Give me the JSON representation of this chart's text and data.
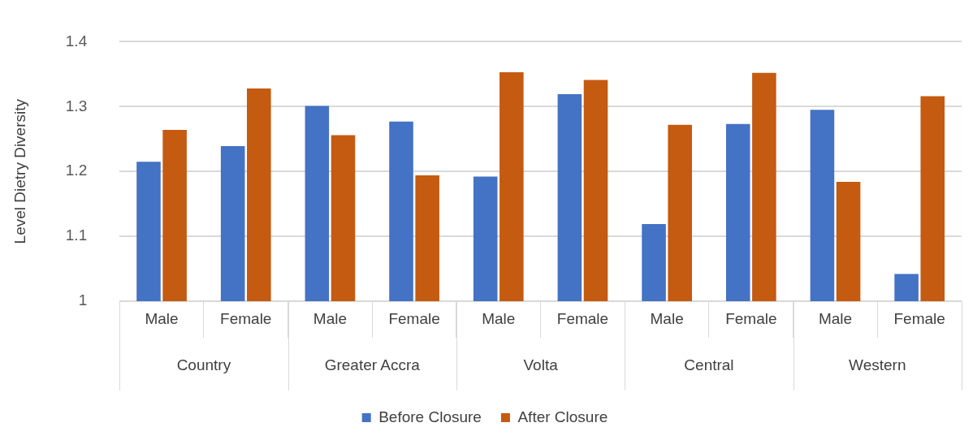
{
  "chart_data": {
    "type": "bar",
    "ylabel": "Level Dietry Diversity",
    "categories": [
      "Male",
      "Female",
      "Male",
      "Female",
      "Male",
      "Female",
      "Male",
      "Female",
      "Male",
      "Female"
    ],
    "annotations": [
      "Country",
      "Greater Accra",
      "Volta",
      "Central",
      "Western"
    ],
    "series": [
      {
        "name": "Before Closure",
        "color": "#4472c4",
        "values": [
          1.215,
          1.239,
          1.301,
          1.277,
          1.192,
          1.319,
          1.119,
          1.273,
          1.295,
          1.042
        ]
      },
      {
        "name": "After Closure",
        "color": "#c55a11",
        "values": [
          1.264,
          1.328,
          1.256,
          1.194,
          1.353,
          1.341,
          1.272,
          1.352,
          1.184,
          1.316
        ]
      }
    ],
    "ylim": [
      1,
      1.4
    ],
    "yticks": [
      1,
      1.1,
      1.2,
      1.3,
      1.4
    ],
    "grid": "y",
    "legend": "bottom"
  }
}
